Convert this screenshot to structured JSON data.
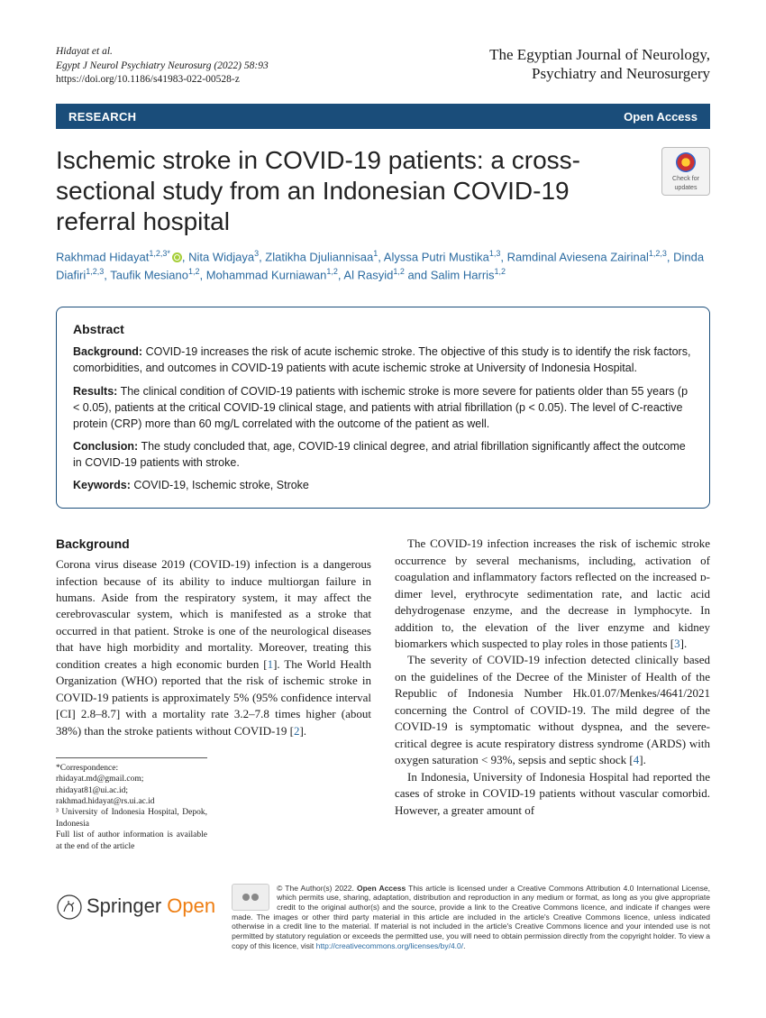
{
  "header": {
    "authors_short": "Hidayat et al.",
    "journal_cite": "Egypt J Neurol Psychiatry Neurosurg     (2022) 58:93",
    "doi": "https://doi.org/10.1186/s41983-022-00528-z",
    "journal_name_1": "The Egyptian Journal of Neurology,",
    "journal_name_2": "Psychiatry and Neurosurgery"
  },
  "badges": {
    "research": "RESEARCH",
    "open_access": "Open Access"
  },
  "crossmark": "Check for updates",
  "title": "Ischemic stroke in COVID-19 patients: a cross-sectional study from an Indonesian COVID-19 referral hospital",
  "authors_html": "Rakhmad Hidayat<sup>1,2,3*</sup><span class=\"orcid\" data-name=\"orcid-icon\" data-interactable=\"false\"></span>, Nita Widjaya<sup>3</sup>, Zlatikha Djuliannisaa<sup>1</sup>, Alyssa Putri Mustika<sup>1,3</sup>, Ramdinal Aviesena Zairinal<sup>1,2,3</sup>, Dinda Diafiri<sup>1,2,3</sup>, Taufik Mesiano<sup>1,2</sup>, Mohammad Kurniawan<sup>1,2</sup>, Al Rasyid<sup>1,2</sup> and Salim Harris<sup>1,2</sup>",
  "abstract": {
    "heading": "Abstract",
    "background_label": "Background:",
    "background_text": " COVID-19 increases the risk of acute ischemic stroke. The objective of this study is to identify the risk factors, comorbidities, and outcomes in COVID-19 patients with acute ischemic stroke at University of Indonesia Hospital.",
    "results_label": "Results:",
    "results_text": " The clinical condition of COVID-19 patients with ischemic stroke is more severe for patients older than 55 years (p < 0.05), patients at the critical COVID-19 clinical stage, and patients with atrial fibrillation (p < 0.05). The level of C-reactive protein (CRP) more than 60 mg/L correlated with the outcome of the patient as well.",
    "conclusion_label": "Conclusion:",
    "conclusion_text": " The study concluded that, age, COVID-19 clinical degree, and atrial fibrillation significantly affect the outcome in COVID-19 patients with stroke.",
    "keywords_label": "Keywords:",
    "keywords_text": " COVID-19, Ischemic stroke, Stroke"
  },
  "body": {
    "heading": "Background",
    "p1": "Corona virus disease 2019 (COVID-19) infection is a dangerous infection because of its ability to induce multiorgan failure in humans. Aside from the respiratory system, it may affect the cerebrovascular system, which is manifested as a stroke that occurred in that patient. Stroke is one of the neurological diseases that have high morbidity and mortality. Moreover, treating this condition creates a high economic burden [1]. The World Health Organization (WHO) reported that the risk of ischemic stroke in COVID-19 patients is approximately 5% (95% confidence interval [CI] 2.8–8.7] with a mortality rate 3.2–7.8 times higher (about 38%) than the stroke patients without COVID-19 [2].",
    "p2": "The COVID-19 infection increases the risk of ischemic stroke occurrence by several mechanisms, including, activation of coagulation and inflammatory factors reflected on the increased ᴅ-dimer level, erythrocyte sedimentation rate, and lactic acid dehydrogenase enzyme, and the decrease in lymphocyte. In addition to, the elevation of the liver enzyme and kidney biomarkers which suspected to play roles in those patients [3].",
    "p3": "The severity of COVID-19 infection detected clinically based on the guidelines of the Decree of the Minister of Health of the Republic of Indonesia Number Hk.01.07/Menkes/4641/2021 concerning the Control of COVID-19. The mild degree of the COVID-19 is symptomatic without dyspnea, and the severe-critical degree is acute respiratory distress syndrome (ARDS) with oxygen saturation < 93%, sepsis and septic shock [4].",
    "p4": "In Indonesia, University of Indonesia Hospital had reported the cases of stroke in COVID-19 patients without vascular comorbid. However, a greater amount of"
  },
  "correspondence": {
    "line1": "*Correspondence: rhidayat.md@gmail.com; rhidayat81@ui.ac.id; rakhmad.hidayat@rs.ui.ac.id",
    "line2": "³ University of Indonesia Hospital, Depok, Indonesia",
    "line3": "Full list of author information is available at the end of the article"
  },
  "footer": {
    "logo_text_1": "Springer",
    "logo_text_2": "Open",
    "license": "© The Author(s) 2022. <b>Open Access</b> This article is licensed under a Creative Commons Attribution 4.0 International License, which permits use, sharing, adaptation, distribution and reproduction in any medium or format, as long as you give appropriate credit to the original author(s) and the source, provide a link to the Creative Commons licence, and indicate if changes were made. The images or other third party material in this article are included in the article's Creative Commons licence, unless indicated otherwise in a credit line to the material. If material is not included in the article's Creative Commons licence and your intended use is not permitted by statutory regulation or exceeds the permitted use, you will need to obtain permission directly from the copyright holder. To view a copy of this licence, visit <a>http://creativecommons.org/licenses/by/4.0/</a>."
  },
  "colors": {
    "badge_bg": "#1a4d7a",
    "link": "#2a6aa0",
    "orcid": "#a6ce39",
    "springer_orange": "#ee7d11"
  }
}
